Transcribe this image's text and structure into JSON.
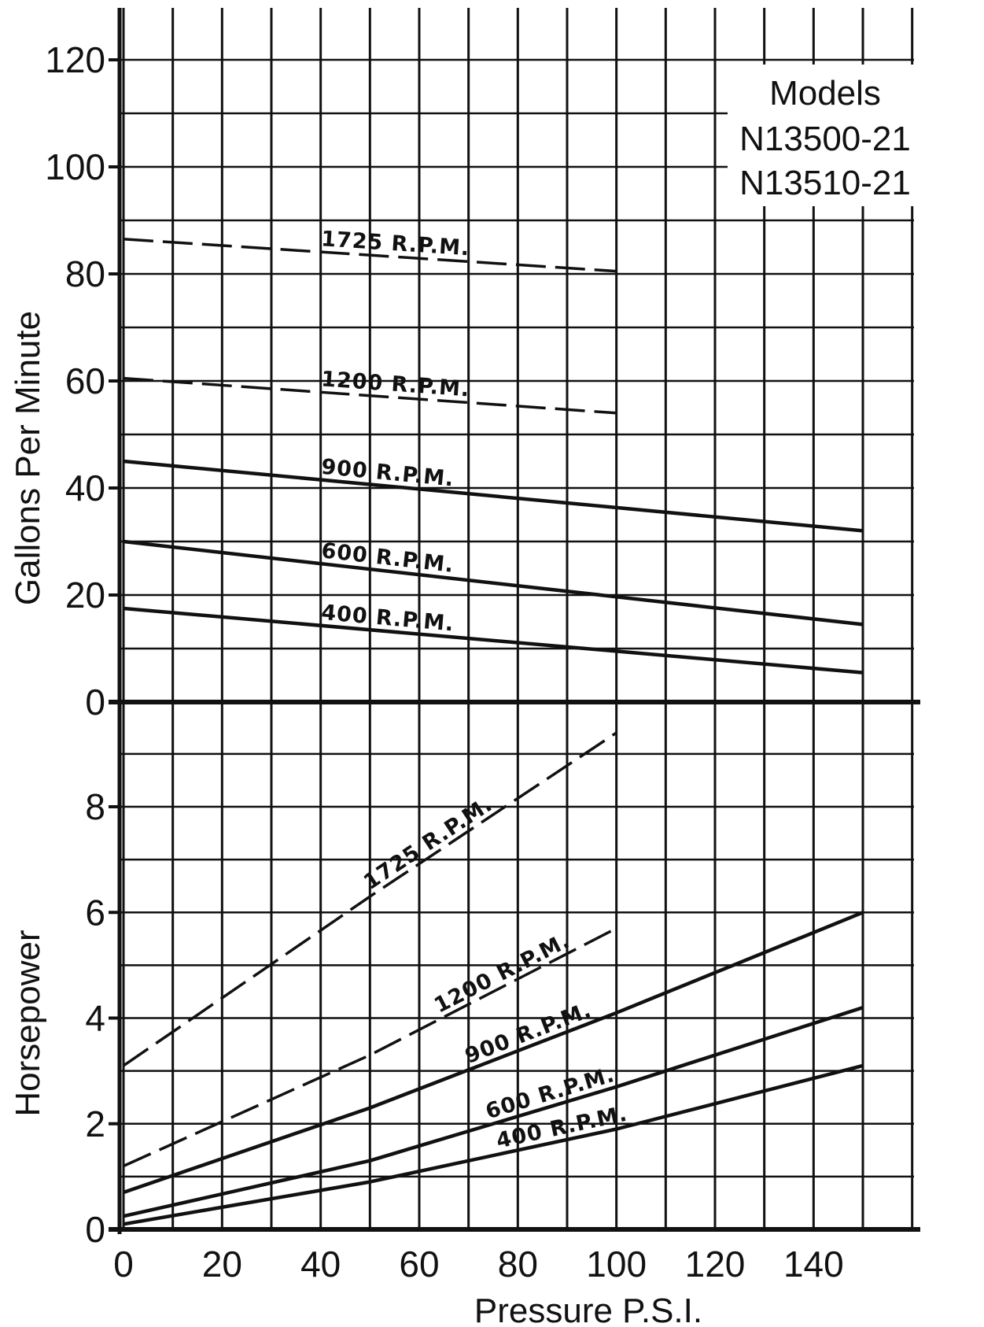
{
  "chart_data": {
    "type": "line",
    "xlabel": "Pressure P.S.I.",
    "xlim": [
      0,
      160
    ],
    "x_ticks": [
      "0",
      "20",
      "40",
      "60",
      "80",
      "100",
      "120",
      "140"
    ],
    "x_tick_values": [
      0,
      20,
      40,
      60,
      80,
      100,
      120,
      140
    ],
    "models_lines": [
      "Models",
      "N13500-21",
      "N13510-21"
    ],
    "grid": true,
    "panels": [
      {
        "name": "gpm",
        "ylabel": "Gallons Per Minute",
        "ylim": [
          0,
          130
        ],
        "y_ticks": [
          "0",
          "20",
          "40",
          "60",
          "80",
          "100",
          "120"
        ],
        "y_tick_values": [
          0,
          20,
          40,
          60,
          80,
          100,
          120
        ],
        "series": [
          {
            "name": "1725 R.P.M.",
            "dashed": true,
            "x": [
              0,
              100
            ],
            "values": [
              86.5,
              80.5
            ]
          },
          {
            "name": "1200 R.P.M.",
            "dashed": true,
            "x": [
              0,
              100
            ],
            "values": [
              60.5,
              54
            ]
          },
          {
            "name": "900 R.P.M.",
            "dashed": false,
            "x": [
              0,
              150
            ],
            "values": [
              45,
              32
            ]
          },
          {
            "name": "600 R.P.M.",
            "dashed": false,
            "x": [
              0,
              150
            ],
            "values": [
              30,
              14.5
            ]
          },
          {
            "name": "400 R.P.M.",
            "dashed": false,
            "x": [
              0,
              150
            ],
            "values": [
              17.5,
              5.5
            ]
          }
        ]
      },
      {
        "name": "hp",
        "ylabel": "Horsepower",
        "ylim": [
          0,
          10
        ],
        "y_ticks": [
          "0",
          "2",
          "4",
          "6",
          "8"
        ],
        "y_tick_values": [
          0,
          2,
          4,
          6,
          8
        ],
        "series": [
          {
            "name": "1725 R.P.M.",
            "dashed": true,
            "x": [
              0,
              50,
              100
            ],
            "values": [
              3.1,
              6.3,
              9.4
            ]
          },
          {
            "name": "1200 R.P.M.",
            "dashed": true,
            "x": [
              0,
              50,
              100
            ],
            "values": [
              1.2,
              3.3,
              5.7
            ]
          },
          {
            "name": "900 R.P.M.",
            "dashed": false,
            "x": [
              0,
              50,
              100,
              150
            ],
            "values": [
              0.7,
              2.3,
              4.1,
              6.0
            ]
          },
          {
            "name": "600 R.P.M.",
            "dashed": false,
            "x": [
              0,
              50,
              100,
              150
            ],
            "values": [
              0.25,
              1.3,
              2.7,
              4.2
            ]
          },
          {
            "name": "400 R.P.M.",
            "dashed": false,
            "x": [
              0,
              50,
              100,
              150
            ],
            "values": [
              0.1,
              0.9,
              1.9,
              3.1
            ]
          }
        ]
      }
    ]
  }
}
